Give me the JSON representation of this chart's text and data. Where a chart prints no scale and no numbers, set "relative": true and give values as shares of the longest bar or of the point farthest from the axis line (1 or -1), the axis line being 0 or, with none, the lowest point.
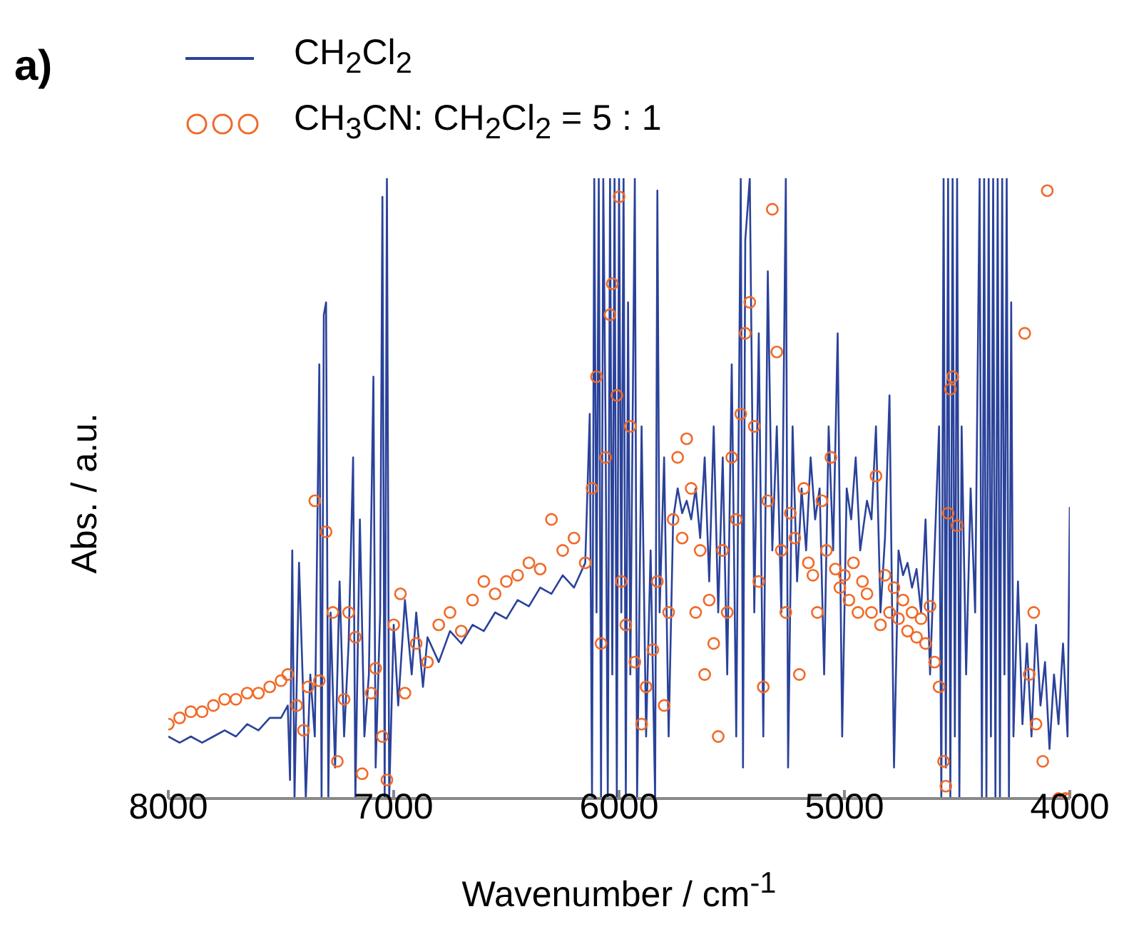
{
  "chart_data": {
    "type": "line",
    "title": "a)",
    "xlabel": "Wavenumber / cm$^{-1}$",
    "ylabel": "Abs. / a.u.",
    "relative": true,
    "xlim": [
      8000,
      4000
    ],
    "xticks": [
      8000,
      7000,
      6000,
      5000,
      4000
    ],
    "legend": "top left",
    "line_style": "solid",
    "series": [
      {
        "name": "CH$_{2}$Cl$_{2}$",
        "marker": "none",
        "color": "#2a429a",
        "x": [
          8000,
          7950,
          7900,
          7850,
          7800,
          7750,
          7700,
          7650,
          7600,
          7550,
          7500,
          7470,
          7460,
          7450,
          7440,
          7420,
          7400,
          7390,
          7370,
          7350,
          7330,
          7320,
          7310,
          7300,
          7290,
          7280,
          7260,
          7240,
          7220,
          7200,
          7180,
          7170,
          7150,
          7130,
          7110,
          7090,
          7080,
          7060,
          7050,
          7040,
          7030,
          7020,
          7000,
          6980,
          6950,
          6920,
          6900,
          6870,
          6850,
          6800,
          6750,
          6700,
          6650,
          6600,
          6550,
          6500,
          6450,
          6400,
          6350,
          6300,
          6250,
          6200,
          6150,
          6130,
          6120,
          6110,
          6100,
          6090,
          6080,
          6070,
          6060,
          6050,
          6040,
          6030,
          6020,
          6010,
          6000,
          5990,
          5980,
          5970,
          5960,
          5950,
          5930,
          5920,
          5900,
          5880,
          5860,
          5840,
          5830,
          5820,
          5800,
          5780,
          5760,
          5740,
          5720,
          5700,
          5680,
          5660,
          5640,
          5620,
          5600,
          5580,
          5560,
          5540,
          5520,
          5500,
          5480,
          5460,
          5450,
          5440,
          5420,
          5400,
          5380,
          5360,
          5340,
          5320,
          5300,
          5280,
          5260,
          5250,
          5230,
          5210,
          5190,
          5170,
          5150,
          5130,
          5110,
          5090,
          5070,
          5050,
          5030,
          5010,
          4990,
          4970,
          4950,
          4930,
          4900,
          4880,
          4860,
          4840,
          4820,
          4800,
          4780,
          4760,
          4740,
          4720,
          4700,
          4680,
          4660,
          4640,
          4620,
          4600,
          4580,
          4570,
          4560,
          4550,
          4540,
          4530,
          4520,
          4510,
          4500,
          4490,
          4480,
          4460,
          4440,
          4420,
          4400,
          4390,
          4380,
          4370,
          4360,
          4350,
          4340,
          4330,
          4320,
          4310,
          4300,
          4290,
          4280,
          4270,
          4260,
          4250,
          4230,
          4210,
          4190,
          4170,
          4150,
          4130,
          4110,
          4090,
          4070,
          4050,
          4030,
          4010,
          4000
        ],
        "values": [
          0.1,
          0.09,
          0.1,
          0.09,
          0.1,
          0.11,
          0.1,
          0.12,
          0.11,
          0.13,
          0.13,
          0.15,
          0.03,
          0.4,
          0,
          0.38,
          0.15,
          0,
          0.2,
          0.1,
          0.7,
          0,
          0.78,
          0.8,
          0,
          0.3,
          0.05,
          0.35,
          0.1,
          0.25,
          0.55,
          0,
          0.45,
          0.1,
          0.2,
          0.68,
          0.05,
          0.3,
          0.97,
          0,
          1,
          0,
          0.28,
          0.15,
          0.32,
          0.2,
          0.3,
          0.18,
          0.26,
          0.22,
          0.27,
          0.25,
          0.28,
          0.27,
          0.3,
          0.29,
          0.32,
          0.31,
          0.34,
          0.33,
          0.36,
          0.34,
          0.38,
          0.62,
          0,
          1,
          0.3,
          1,
          0,
          1,
          0.6,
          0,
          1,
          0.2,
          1,
          0,
          1,
          0.3,
          1,
          0,
          0.8,
          0.2,
          1,
          0,
          0.6,
          0.1,
          0.4,
          0,
          0.98,
          0.3,
          0.55,
          0.1,
          0.45,
          0.5,
          0.46,
          0.48,
          0.45,
          0.5,
          0.42,
          0.55,
          0.35,
          0.6,
          0.3,
          0.55,
          0.2,
          0.7,
          0.1,
          1,
          0.05,
          0.9,
          1,
          0.3,
          0.75,
          0.1,
          0.85,
          0.4,
          0.6,
          0.3,
          1,
          0.05,
          0.6,
          0.35,
          0.5,
          0.4,
          0.55,
          0.45,
          0.5,
          0.2,
          0.6,
          0.4,
          0.75,
          0.1,
          0.5,
          0.45,
          0.55,
          0.4,
          0.48,
          0.45,
          0.6,
          0.3,
          0.42,
          0.65,
          0.05,
          0.4,
          0.36,
          0.38,
          0.34,
          0.37,
          0.3,
          0.45,
          0.2,
          0.4,
          0.6,
          0,
          1,
          0.05,
          1,
          0,
          1,
          0.1,
          1,
          0,
          0.6,
          0.2,
          0.5,
          0.3,
          1,
          0,
          1,
          0,
          1,
          0.1,
          1,
          0,
          1,
          0,
          1,
          0.2,
          1,
          0,
          0.8,
          0.1,
          0.35,
          0.12,
          0.25,
          0.1,
          0.28,
          0.15,
          0.22,
          0.08,
          0.2,
          0.12,
          0.25,
          0.1,
          0.47
        ]
      },
      {
        "name": "CH$_{3}$CN: CH$_{2}$Cl$_{2}$ = 5 : 1",
        "type": "scatter",
        "marker": "circle",
        "color": "#f06a28",
        "x": [
          8000,
          7950,
          7900,
          7850,
          7800,
          7750,
          7700,
          7650,
          7600,
          7550,
          7500,
          7470,
          7430,
          7400,
          7380,
          7350,
          7330,
          7300,
          7270,
          7250,
          7220,
          7200,
          7170,
          7140,
          7100,
          7080,
          7050,
          7030,
          7000,
          6970,
          6950,
          6900,
          6850,
          6800,
          6750,
          6700,
          6650,
          6600,
          6550,
          6500,
          6450,
          6400,
          6350,
          6300,
          6250,
          6200,
          6150,
          6120,
          6100,
          6080,
          6060,
          6040,
          6030,
          6010,
          6000,
          5990,
          5970,
          5950,
          5930,
          5900,
          5880,
          5850,
          5830,
          5800,
          5780,
          5760,
          5740,
          5720,
          5700,
          5680,
          5660,
          5640,
          5620,
          5600,
          5580,
          5560,
          5540,
          5520,
          5500,
          5480,
          5460,
          5440,
          5420,
          5400,
          5380,
          5360,
          5340,
          5320,
          5300,
          5280,
          5260,
          5240,
          5220,
          5200,
          5180,
          5160,
          5140,
          5120,
          5100,
          5080,
          5060,
          5040,
          5020,
          5000,
          4980,
          4960,
          4940,
          4920,
          4900,
          4880,
          4860,
          4840,
          4820,
          4800,
          4780,
          4760,
          4740,
          4720,
          4700,
          4680,
          4660,
          4640,
          4620,
          4600,
          4580,
          4560,
          4550,
          4540,
          4530,
          4520,
          4500,
          4200,
          4180,
          4160,
          4150,
          4120,
          4100,
          4050,
          4020,
          4000
        ],
        "values": [
          0.12,
          0.13,
          0.14,
          0.14,
          0.15,
          0.16,
          0.16,
          0.17,
          0.17,
          0.18,
          0.19,
          0.2,
          0.15,
          0.11,
          0.18,
          0.48,
          0.19,
          0.43,
          0.3,
          0.06,
          0.16,
          0.3,
          0.26,
          0.04,
          0.17,
          0.21,
          0.1,
          0.03,
          0.28,
          0.33,
          0.17,
          0.25,
          0.22,
          0.28,
          0.3,
          0.27,
          0.32,
          0.35,
          0.33,
          0.35,
          0.36,
          0.38,
          0.37,
          0.45,
          0.4,
          0.42,
          0.38,
          0.5,
          0.68,
          0.25,
          0.55,
          0.78,
          0.83,
          0.65,
          0.97,
          0.35,
          0.28,
          0.6,
          0.22,
          0.12,
          0.18,
          0.24,
          0.35,
          0.15,
          0.3,
          0.45,
          0.55,
          0.42,
          0.58,
          0.5,
          0.3,
          0.4,
          0.2,
          0.32,
          0.25,
          0.1,
          0.4,
          0.3,
          0.55,
          0.45,
          0.62,
          0.75,
          0.8,
          0.6,
          0.35,
          0.18,
          0.48,
          0.95,
          0.72,
          0.4,
          0.3,
          0.46,
          0.42,
          0.2,
          0.5,
          0.38,
          0.36,
          0.3,
          0.48,
          0.4,
          0.55,
          0.37,
          0.34,
          0.36,
          0.32,
          0.38,
          0.3,
          0.35,
          0.33,
          0.3,
          0.52,
          0.28,
          0.36,
          0.3,
          0.34,
          0.29,
          0.32,
          0.27,
          0.3,
          0.26,
          0.29,
          0.25,
          0.31,
          0.22,
          0.18,
          0.06,
          0.02,
          0.46,
          0.66,
          0.68,
          0.44,
          0.75,
          0.2,
          0.3,
          0.12,
          0.06,
          0.98,
          0,
          0,
          0
        ]
      }
    ]
  }
}
